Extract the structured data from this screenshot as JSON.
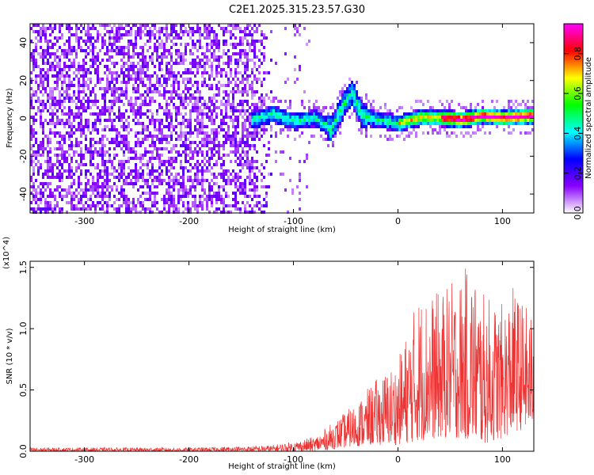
{
  "title": "C2E1.2025.315.23.57.G30",
  "chart_data": [
    {
      "type": "heatmap",
      "xlabel": "Height of straight line (km)",
      "ylabel": "Frequency (Hz)",
      "xlim": [
        -352,
        130
      ],
      "ylim": [
        -50,
        50
      ],
      "xticks": [
        -300,
        -200,
        -100,
        0,
        100
      ],
      "xtick_labels": [
        "-300",
        "-200",
        "-100",
        "0",
        "100"
      ],
      "yticks": [
        -40,
        -20,
        0,
        20,
        40
      ],
      "ytick_labels": [
        "-40",
        "-20",
        "0",
        "20",
        "40"
      ],
      "colorbar": {
        "label": "Normalized spectral amplitude",
        "range": [
          0,
          0.95
        ],
        "ticks": [
          0.0,
          0.2,
          0.4,
          0.6,
          0.8
        ],
        "tick_labels": [
          "0.0",
          "0.2",
          "0.4",
          "0.6",
          "0.8"
        ],
        "colors": [
          "#ffffff",
          "#8800ff",
          "#0000ff",
          "#00ffff",
          "#00ff00",
          "#ffff00",
          "#ff0000",
          "#ff00ff"
        ]
      },
      "description_ridge": [
        {
          "x": -140,
          "y": 0
        },
        {
          "x": -120,
          "y": 3
        },
        {
          "x": -100,
          "y": -1
        },
        {
          "x": -80,
          "y": 1
        },
        {
          "x": -65,
          "y": -5
        },
        {
          "x": -55,
          "y": 6
        },
        {
          "x": -45,
          "y": 14
        },
        {
          "x": -35,
          "y": 2
        },
        {
          "x": -20,
          "y": 0
        },
        {
          "x": 0,
          "y": -2
        },
        {
          "x": 20,
          "y": 1
        },
        {
          "x": 40,
          "y": 1
        },
        {
          "x": 60,
          "y": 0
        },
        {
          "x": 80,
          "y": 2
        },
        {
          "x": 100,
          "y": 1
        },
        {
          "x": 130,
          "y": 2
        }
      ]
    },
    {
      "type": "line",
      "color": "#ee3333",
      "xlabel": "Height of straight line (km)",
      "ylabel": "SNR (10 * v/v)",
      "y_multiplier": "(x10^4)",
      "xlim": [
        -352,
        130
      ],
      "ylim": [
        0,
        1.55
      ],
      "xticks": [
        -300,
        -200,
        -100,
        0,
        100
      ],
      "xtick_labels": [
        "-300",
        "-200",
        "-100",
        "0",
        "100"
      ],
      "yticks": [
        0.0,
        0.5,
        1.0,
        1.5
      ],
      "ytick_labels": [
        "0.0",
        "0.5",
        "1.0",
        "1.5"
      ],
      "envelope": {
        "x": [
          -352,
          -300,
          -200,
          -150,
          -120,
          -100,
          -80,
          -60,
          -40,
          -20,
          0,
          20,
          40,
          60,
          70,
          80,
          100,
          110,
          130
        ],
        "y_max": [
          0.03,
          0.03,
          0.03,
          0.04,
          0.05,
          0.08,
          0.12,
          0.25,
          0.4,
          0.6,
          0.75,
          1.3,
          1.3,
          1.45,
          1.55,
          1.3,
          1.2,
          1.35,
          1.1
        ],
        "y_min": [
          0.0,
          0.0,
          0.0,
          0.0,
          0.0,
          0.0,
          0.0,
          0.02,
          0.04,
          0.05,
          0.05,
          0.08,
          0.1,
          0.1,
          0.08,
          0.05,
          0.1,
          0.15,
          0.2
        ]
      }
    }
  ]
}
